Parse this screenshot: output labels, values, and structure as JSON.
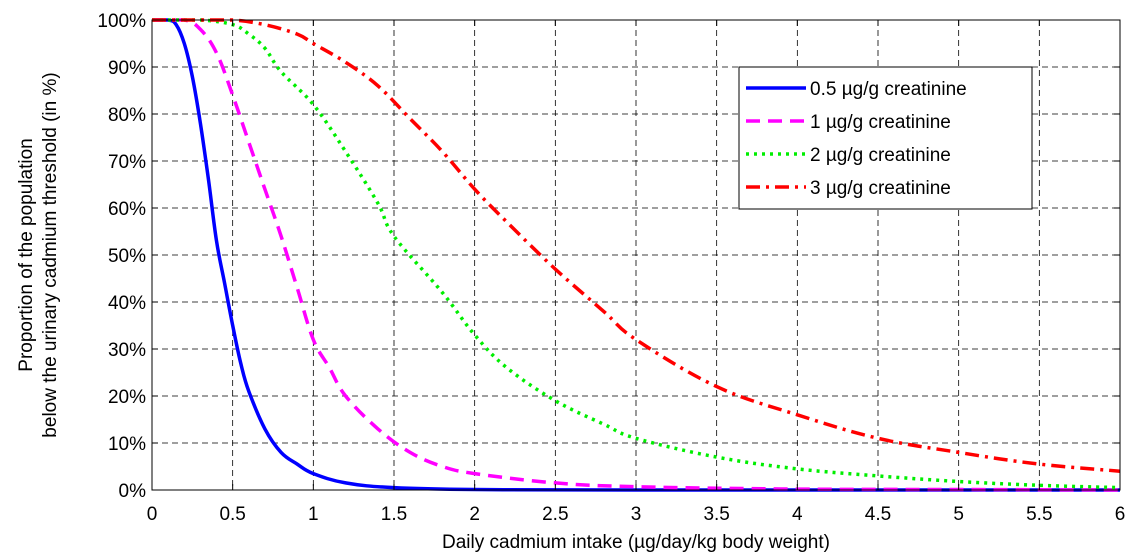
{
  "chart_data": {
    "type": "line",
    "title": "",
    "xlabel": "Daily cadmium intake (µg/day/kg body weight)",
    "ylabel_lines": [
      "Proportion of the population",
      "below the urinary cadmium threshold (in %)"
    ],
    "xlim": [
      0,
      6
    ],
    "ylim": [
      0,
      100
    ],
    "x_ticks": [
      0,
      0.5,
      1,
      1.5,
      2,
      2.5,
      3,
      3.5,
      4,
      4.5,
      5,
      5.5,
      6
    ],
    "x_tick_labels": [
      "0",
      "0.5",
      "1",
      "1.5",
      "2",
      "2.5",
      "3",
      "3.5",
      "4",
      "4.5",
      "5",
      "5.5",
      "6"
    ],
    "y_ticks": [
      0,
      10,
      20,
      30,
      40,
      50,
      60,
      70,
      80,
      90,
      100
    ],
    "y_tick_labels": [
      "0%",
      "10%",
      "20%",
      "30%",
      "40%",
      "50%",
      "60%",
      "70%",
      "80%",
      "90%",
      "100%"
    ],
    "grid": true,
    "legend_position": "top-right",
    "series": [
      {
        "name": "0.5 µg/g creatinine",
        "color": "#0000ff",
        "style": "solid",
        "x": [
          0,
          0.1,
          0.15,
          0.2,
          0.25,
          0.3,
          0.35,
          0.4,
          0.45,
          0.5,
          0.55,
          0.6,
          0.7,
          0.8,
          0.9,
          1.0,
          1.2,
          1.5,
          2.0,
          3.0,
          6.0
        ],
        "y": [
          100,
          100,
          99,
          95,
          88,
          78,
          66,
          53,
          44,
          35,
          27,
          21,
          13,
          8,
          5.5,
          3.5,
          1.5,
          0.5,
          0.1,
          0,
          0
        ]
      },
      {
        "name": "1 µg/g creatinine",
        "color": "#ff00ff",
        "style": "dashed",
        "x": [
          0,
          0.2,
          0.3,
          0.4,
          0.5,
          0.6,
          0.7,
          0.8,
          0.9,
          1.0,
          1.1,
          1.2,
          1.4,
          1.6,
          1.8,
          2.0,
          2.5,
          3.0,
          4.0,
          5.0,
          6.0
        ],
        "y": [
          100,
          100,
          98,
          93,
          84,
          74,
          64,
          54,
          43,
          32,
          26,
          20,
          13,
          8,
          5,
          3.5,
          1.5,
          0.7,
          0.2,
          0.1,
          0
        ]
      },
      {
        "name": "2 µg/g creatinine",
        "color": "#00ee00",
        "style": "dotted",
        "x": [
          0,
          0.3,
          0.5,
          0.6,
          0.7,
          0.8,
          1.0,
          1.2,
          1.4,
          1.5,
          1.8,
          2.0,
          2.2,
          2.5,
          2.8,
          3.0,
          3.5,
          4.0,
          4.5,
          5.0,
          5.5,
          6.0
        ],
        "y": [
          100,
          100,
          99,
          97,
          94,
          89,
          82,
          72,
          61,
          54,
          42,
          33,
          26,
          19,
          14,
          11,
          7,
          4.5,
          3,
          1.8,
          1,
          0.5
        ]
      },
      {
        "name": "3 µg/g creatinine",
        "color": "#ff0000",
        "style": "dashdot",
        "x": [
          0,
          0.3,
          0.5,
          0.7,
          0.9,
          1.0,
          1.2,
          1.4,
          1.6,
          1.8,
          2.0,
          2.2,
          2.5,
          2.8,
          3.0,
          3.5,
          4.0,
          4.5,
          5.0,
          5.5,
          6.0
        ],
        "y": [
          100,
          100,
          100,
          99,
          97,
          95,
          91,
          86,
          79,
          72,
          64,
          57,
          47,
          38,
          32,
          22,
          16,
          11,
          8,
          5.5,
          4
        ]
      }
    ]
  }
}
